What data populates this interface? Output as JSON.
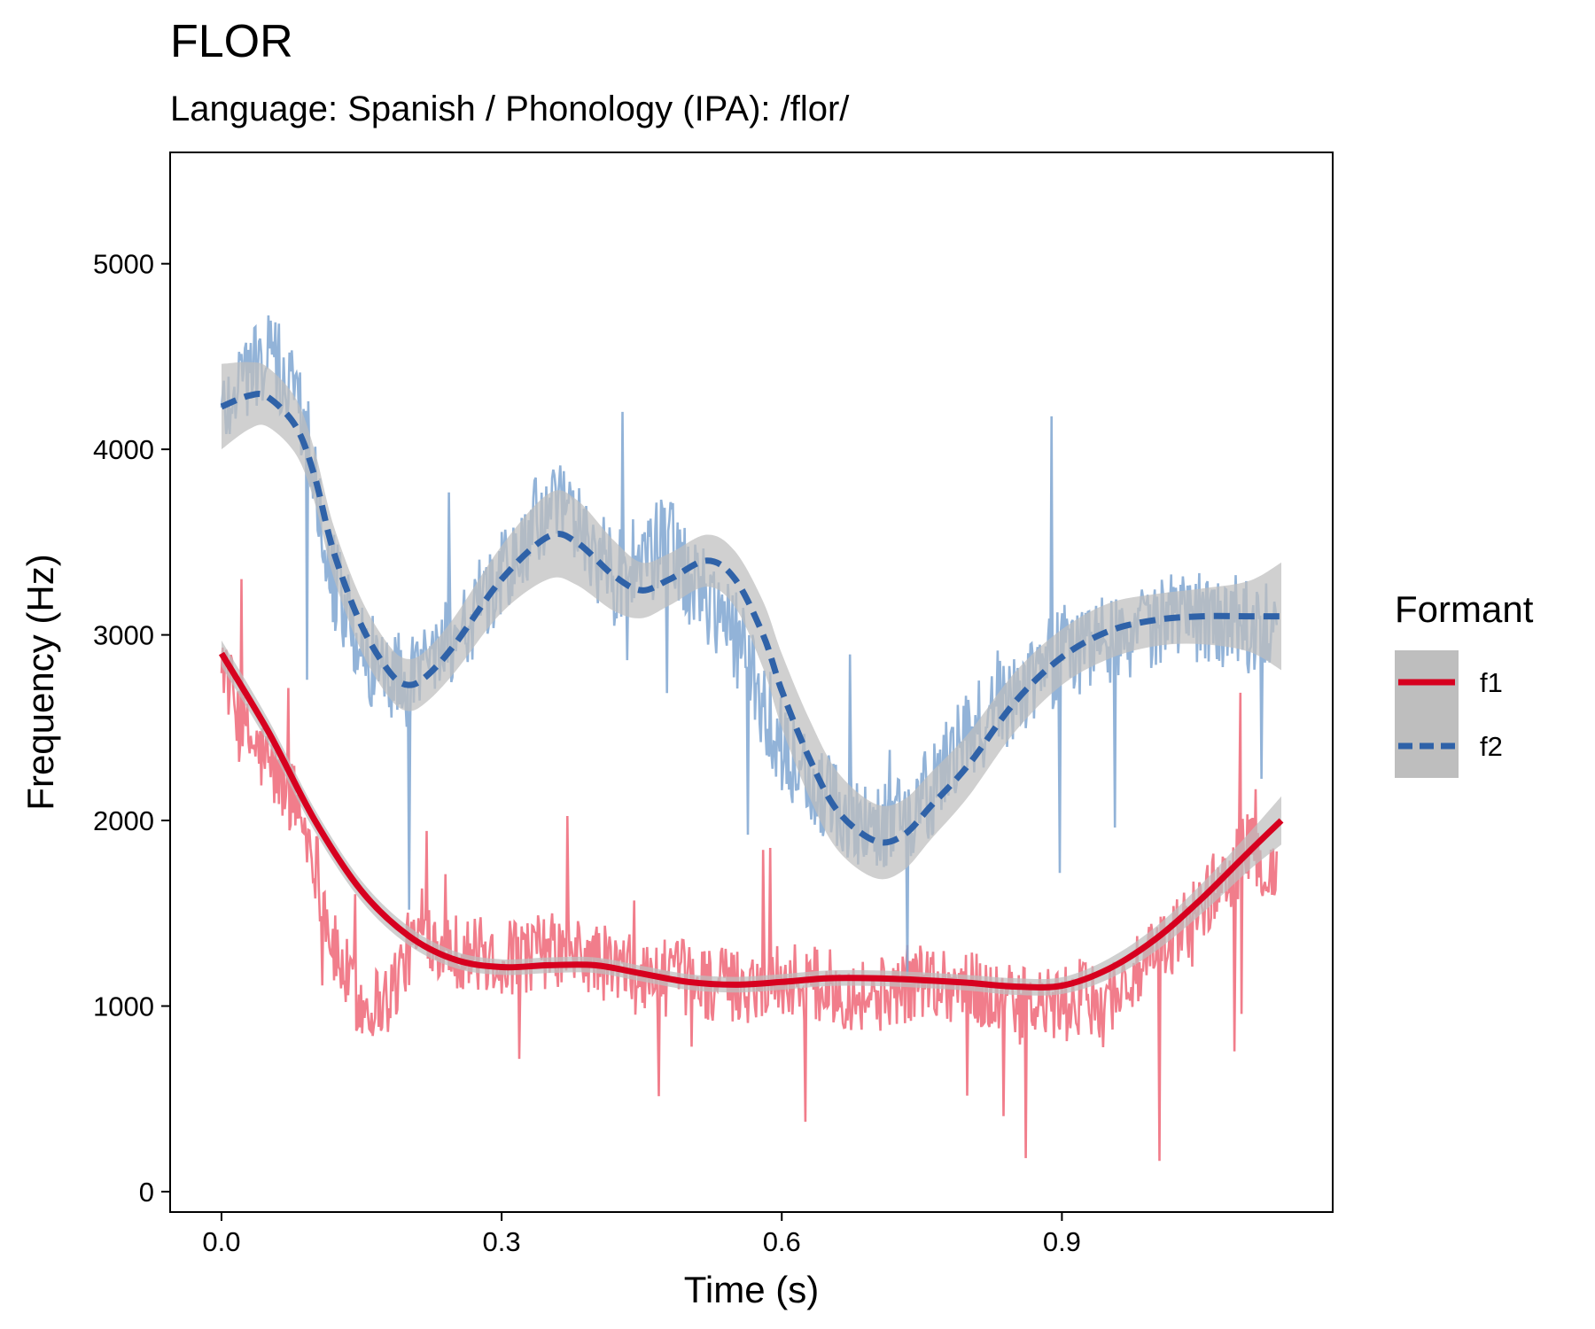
{
  "chart_data": {
    "type": "line",
    "title": "FLOR",
    "subtitle": "Language: Spanish / Phonology (IPA): /flor/",
    "xlabel": "Time (s)",
    "ylabel": "Frequency (Hz)",
    "xlim": [
      -0.055,
      1.19
    ],
    "ylim": [
      -110,
      5600
    ],
    "x_ticks": [
      0.0,
      0.3,
      0.6,
      0.9
    ],
    "x_tick_labels": [
      "0.0",
      "0.3",
      "0.6",
      "0.9"
    ],
    "y_ticks": [
      0,
      1000,
      2000,
      3000,
      4000,
      5000
    ],
    "y_tick_labels": [
      "0",
      "1000",
      "2000",
      "3000",
      "4000",
      "5000"
    ],
    "grid": false,
    "legend": {
      "title": "Formant",
      "position": "right",
      "entries": [
        "f1",
        "f2"
      ]
    },
    "colors": {
      "f1_raw": "#EE6677",
      "f1_smooth": "#D7001F",
      "f2_raw": "#7FA6D1",
      "f2_smooth": "#2F62A8",
      "band": "#BEBEBE"
    },
    "series": [
      {
        "name": "f1",
        "raw_anchors": {
          "t": [
            0.0,
            0.02,
            0.05,
            0.08,
            0.1,
            0.12,
            0.15,
            0.18,
            0.2,
            0.22,
            0.25,
            0.3,
            0.35,
            0.4,
            0.45,
            0.5,
            0.55,
            0.6,
            0.65,
            0.7,
            0.75,
            0.8,
            0.85,
            0.9,
            0.95,
            1.0,
            1.05,
            1.1,
            1.13
          ],
          "f": [
            2900,
            2500,
            2300,
            2100,
            1800,
            1300,
            1000,
            1050,
            1300,
            1400,
            1300,
            1250,
            1300,
            1250,
            1150,
            1150,
            1100,
            1150,
            1100,
            1050,
            1150,
            1100,
            1000,
            1000,
            1050,
            1250,
            1550,
            1850,
            1700
          ]
        },
        "smooth": {
          "t": [
            0.0,
            0.05,
            0.1,
            0.15,
            0.2,
            0.25,
            0.3,
            0.35,
            0.4,
            0.45,
            0.5,
            0.55,
            0.6,
            0.65,
            0.7,
            0.75,
            0.8,
            0.85,
            0.9,
            0.95,
            1.0,
            1.05,
            1.1,
            1.135
          ],
          "f": [
            2900,
            2480,
            2000,
            1620,
            1380,
            1250,
            1210,
            1220,
            1220,
            1175,
            1130,
            1115,
            1130,
            1150,
            1150,
            1140,
            1125,
            1105,
            1110,
            1200,
            1360,
            1580,
            1830,
            2000
          ],
          "se": [
            70,
            65,
            60,
            55,
            50,
            45,
            42,
            42,
            42,
            42,
            42,
            42,
            42,
            42,
            42,
            42,
            42,
            45,
            45,
            55,
            65,
            80,
            100,
            130
          ]
        }
      },
      {
        "name": "f2",
        "raw_anchors": {
          "t": [
            0.0,
            0.02,
            0.05,
            0.08,
            0.1,
            0.12,
            0.15,
            0.18,
            0.2,
            0.22,
            0.25,
            0.3,
            0.35,
            0.38,
            0.42,
            0.45,
            0.48,
            0.5,
            0.52,
            0.55,
            0.6,
            0.65,
            0.7,
            0.75,
            0.8,
            0.85,
            0.9,
            0.95,
            1.0,
            1.05,
            1.1,
            1.13
          ],
          "f": [
            4200,
            4400,
            4500,
            4300,
            3900,
            3300,
            2900,
            2800,
            2750,
            2900,
            3000,
            3300,
            3700,
            3600,
            3300,
            3400,
            3500,
            3300,
            3200,
            3000,
            2400,
            2100,
            1950,
            2100,
            2450,
            2700,
            2900,
            3000,
            3050,
            3100,
            3050,
            3100
          ]
        },
        "smooth": {
          "t": [
            0.0,
            0.03,
            0.05,
            0.08,
            0.1,
            0.12,
            0.15,
            0.18,
            0.2,
            0.22,
            0.25,
            0.3,
            0.35,
            0.38,
            0.42,
            0.45,
            0.48,
            0.52,
            0.55,
            0.58,
            0.6,
            0.63,
            0.66,
            0.7,
            0.73,
            0.76,
            0.8,
            0.85,
            0.9,
            0.95,
            1.0,
            1.05,
            1.1,
            1.135
          ],
          "f": [
            4230,
            4290,
            4280,
            4120,
            3850,
            3450,
            3050,
            2800,
            2730,
            2780,
            2950,
            3300,
            3530,
            3500,
            3320,
            3240,
            3300,
            3400,
            3300,
            3000,
            2700,
            2330,
            2050,
            1890,
            1920,
            2080,
            2300,
            2640,
            2880,
            3020,
            3080,
            3100,
            3100,
            3100
          ],
          "se": [
            230,
            180,
            160,
            150,
            140,
            140,
            140,
            140,
            140,
            140,
            150,
            180,
            230,
            230,
            190,
            150,
            140,
            140,
            150,
            180,
            200,
            210,
            210,
            200,
            190,
            180,
            170,
            160,
            150,
            150,
            140,
            150,
            190,
            290
          ]
        }
      }
    ]
  }
}
